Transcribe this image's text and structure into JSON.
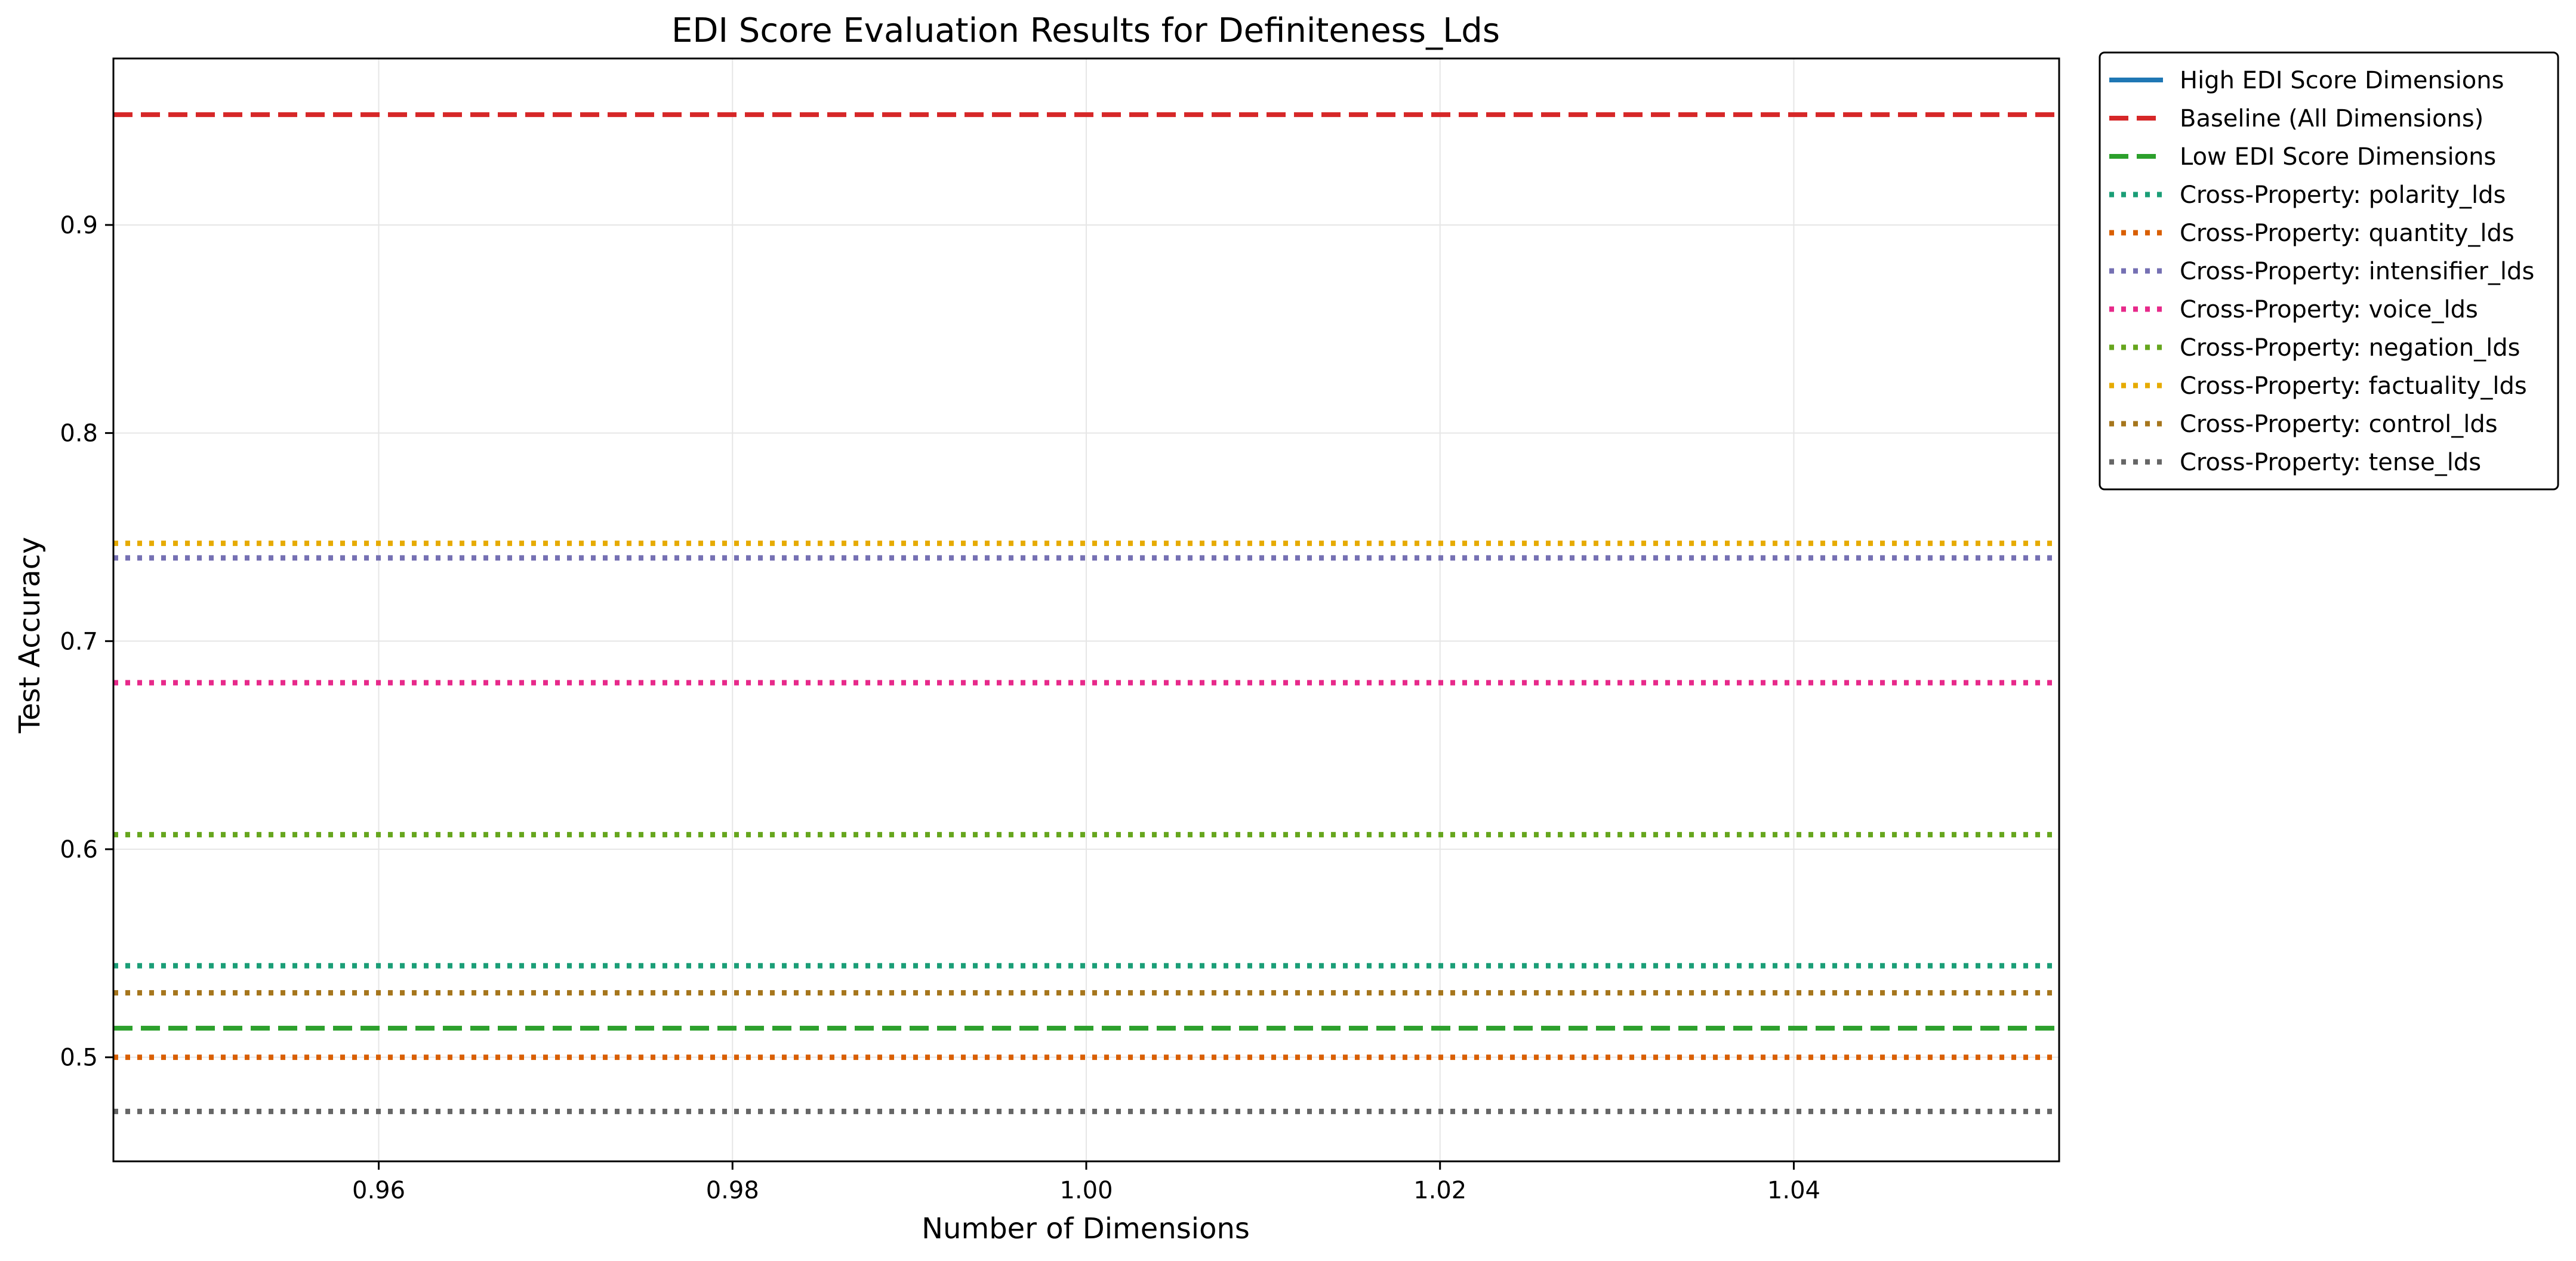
{
  "chart_data": {
    "type": "line",
    "title": "EDI Score Evaluation Results for Definiteness_Lds",
    "xlabel": "Number of Dimensions",
    "ylabel": "Test Accuracy",
    "xlim": [
      0.945,
      1.055
    ],
    "ylim": [
      0.45,
      0.98
    ],
    "x_ticks": [
      0.96,
      0.98,
      1.0,
      1.02,
      1.04
    ],
    "x_tick_labels": [
      "0.96",
      "0.98",
      "1.00",
      "1.02",
      "1.04"
    ],
    "y_ticks": [
      0.5,
      0.6,
      0.7,
      0.8,
      0.9
    ],
    "y_tick_labels": [
      "0.5",
      "0.6",
      "0.7",
      "0.8",
      "0.9"
    ],
    "grid": true,
    "legend_position": "outside-top-right",
    "series": [
      {
        "name": "High EDI Score Dimensions",
        "x": [
          1
        ],
        "y": [
          0.514
        ],
        "color": "#1f77b4",
        "style": "solid",
        "draw_line": false
      },
      {
        "name": "Baseline (All Dimensions)",
        "x": [
          0.945,
          1.055
        ],
        "y": [
          0.953,
          0.953
        ],
        "color": "#d62728",
        "style": "dashed"
      },
      {
        "name": "Low EDI Score Dimensions",
        "x": [
          0.945,
          1.055
        ],
        "y": [
          0.514,
          0.514
        ],
        "color": "#2ca02c",
        "style": "dashed"
      },
      {
        "name": "Cross-Property: polarity_lds",
        "x": [
          0.945,
          1.055
        ],
        "y": [
          0.544,
          0.544
        ],
        "color": "#1b9e77",
        "style": "dotted"
      },
      {
        "name": "Cross-Property: quantity_lds",
        "x": [
          0.945,
          1.055
        ],
        "y": [
          0.5,
          0.5
        ],
        "color": "#d95f02",
        "style": "dotted"
      },
      {
        "name": "Cross-Property: intensifier_lds",
        "x": [
          0.945,
          1.055
        ],
        "y": [
          0.74,
          0.74
        ],
        "color": "#7570b3",
        "style": "dotted"
      },
      {
        "name": "Cross-Property: voice_lds",
        "x": [
          0.945,
          1.055
        ],
        "y": [
          0.68,
          0.68
        ],
        "color": "#e7298a",
        "style": "dotted"
      },
      {
        "name": "Cross-Property: negation_lds",
        "x": [
          0.945,
          1.055
        ],
        "y": [
          0.607,
          0.607
        ],
        "color": "#66a61e",
        "style": "dotted"
      },
      {
        "name": "Cross-Property: factuality_lds",
        "x": [
          0.945,
          1.055
        ],
        "y": [
          0.747,
          0.747
        ],
        "color": "#e6ab02",
        "style": "dotted"
      },
      {
        "name": "Cross-Property: control_lds",
        "x": [
          0.945,
          1.055
        ],
        "y": [
          0.531,
          0.531
        ],
        "color": "#a6761d",
        "style": "dotted"
      },
      {
        "name": "Cross-Property: tense_lds",
        "x": [
          0.945,
          1.055
        ],
        "y": [
          0.474,
          0.474
        ],
        "color": "#666666",
        "style": "dotted"
      }
    ]
  }
}
